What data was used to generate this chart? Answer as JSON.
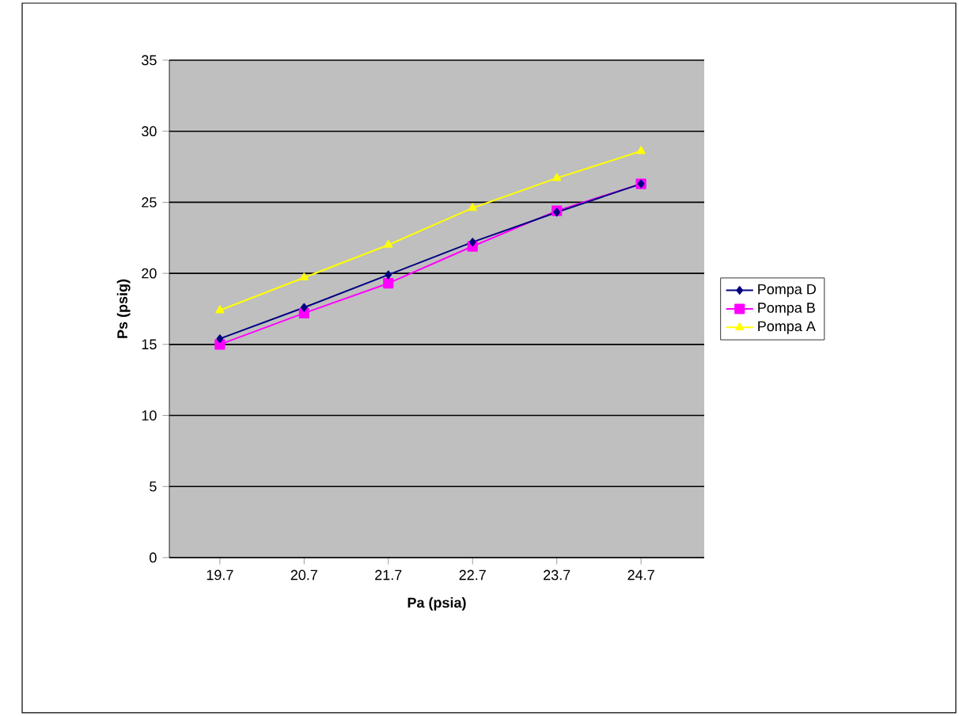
{
  "chart_data": {
    "type": "line",
    "xlabel": "Pa (psia)",
    "ylabel": "Ps (psig)",
    "categories": [
      "19.7",
      "20.7",
      "21.7",
      "22.7",
      "23.7",
      "24.7"
    ],
    "ylim": [
      0,
      35
    ],
    "yticks": [
      0,
      5,
      10,
      15,
      20,
      25,
      30,
      35
    ],
    "grid": "y",
    "legend": "right",
    "series": [
      {
        "name": "Pompa D",
        "color": "#000080",
        "marker": "diamond",
        "values": [
          15.4,
          17.6,
          19.9,
          22.2,
          24.3,
          26.3
        ]
      },
      {
        "name": "Pompa B",
        "color": "#ff00ff",
        "marker": "square",
        "values": [
          15.0,
          17.2,
          19.3,
          21.9,
          24.4,
          26.3
        ]
      },
      {
        "name": "Pompa A",
        "color": "#ffff00",
        "marker": "triangle",
        "values": [
          17.4,
          19.7,
          22.0,
          24.6,
          26.7,
          28.6
        ]
      }
    ]
  }
}
